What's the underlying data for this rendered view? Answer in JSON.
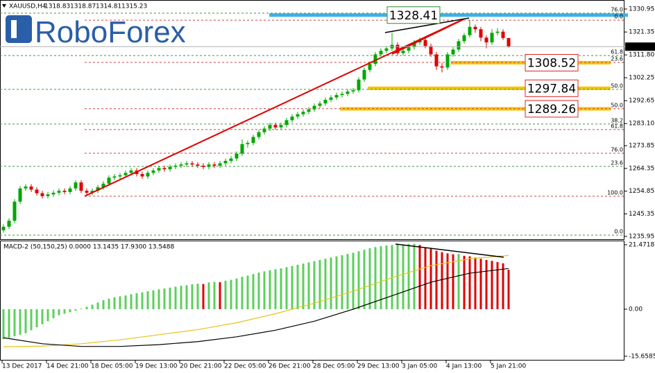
{
  "chart_data": [
    {
      "type": "candlestick",
      "title": "XAUUSD,H4",
      "logo": "RoboForex",
      "categories": [
        "13 Dec 2017",
        null,
        null,
        null,
        null,
        null,
        null,
        null,
        "14 Dec 21:00",
        null,
        null,
        null,
        null,
        null,
        null,
        null,
        "18 Dec 05:00",
        null,
        null,
        null,
        null,
        null,
        null,
        null,
        "19 Dec 13:00",
        null,
        null,
        null,
        null,
        null,
        null,
        null,
        "20 Dec 21:00",
        null,
        null,
        null,
        null,
        null,
        null,
        null,
        "22 Dec 05:00",
        null,
        null,
        null,
        null,
        null,
        null,
        null,
        "26 Dec 21:00",
        null,
        null,
        null,
        null,
        null,
        null,
        null,
        "28 Dec 05:00",
        null,
        null,
        null,
        null,
        null,
        null,
        null,
        "29 Dec 13:00",
        null,
        null,
        null,
        null,
        null,
        null,
        null,
        "3 Jan 05:00",
        null,
        null,
        null,
        null,
        null,
        null,
        null,
        "4 Jan 13:00",
        null,
        null,
        null,
        null,
        null,
        null,
        null,
        "5 Jan 21:00",
        null,
        null,
        null
      ],
      "ohlc": [
        [
          1238.5,
          1241.0,
          1237.5,
          1240.0
        ],
        [
          1240.0,
          1243.5,
          1239.0,
          1242.5
        ],
        [
          1242.5,
          1251.5,
          1241.5,
          1250.5
        ],
        [
          1250.5,
          1257.0,
          1249.5,
          1256.0
        ],
        [
          1256.0,
          1257.8,
          1255.0,
          1256.8
        ],
        [
          1256.8,
          1257.8,
          1254.5,
          1255.5
        ],
        [
          1255.5,
          1256.5,
          1253.0,
          1254.0
        ],
        [
          1254.0,
          1255.0,
          1251.8,
          1252.8
        ],
        [
          1252.8,
          1254.5,
          1251.8,
          1253.5
        ],
        [
          1253.5,
          1255.2,
          1252.5,
          1254.2
        ],
        [
          1254.2,
          1256.0,
          1253.2,
          1255.0
        ],
        [
          1255.0,
          1256.0,
          1253.5,
          1254.5
        ],
        [
          1254.5,
          1257.0,
          1253.5,
          1256.0
        ],
        [
          1256.0,
          1259.5,
          1255.0,
          1258.5
        ],
        [
          1258.5,
          1259.5,
          1254.0,
          1255.0
        ],
        [
          1255.0,
          1256.0,
          1253.2,
          1254.2
        ],
        [
          1254.2,
          1256.0,
          1253.2,
          1255.0
        ],
        [
          1255.0,
          1257.5,
          1254.0,
          1256.5
        ],
        [
          1256.5,
          1259.0,
          1255.5,
          1258.0
        ],
        [
          1258.0,
          1261.5,
          1257.0,
          1260.5
        ],
        [
          1260.5,
          1262.0,
          1259.5,
          1261.0
        ],
        [
          1261.0,
          1262.5,
          1260.0,
          1261.5
        ],
        [
          1261.5,
          1263.5,
          1260.5,
          1262.5
        ],
        [
          1262.5,
          1264.5,
          1261.5,
          1263.5
        ],
        [
          1263.5,
          1264.5,
          1261.0,
          1262.0
        ],
        [
          1262.0,
          1263.0,
          1260.0,
          1261.0
        ],
        [
          1261.0,
          1263.5,
          1260.0,
          1262.5
        ],
        [
          1262.5,
          1264.5,
          1261.5,
          1263.5
        ],
        [
          1263.5,
          1265.5,
          1262.5,
          1264.5
        ],
        [
          1264.5,
          1265.5,
          1263.0,
          1264.0
        ],
        [
          1264.0,
          1266.0,
          1263.0,
          1265.0
        ],
        [
          1265.0,
          1266.5,
          1264.0,
          1265.5
        ],
        [
          1265.5,
          1267.0,
          1264.5,
          1266.0
        ],
        [
          1266.0,
          1267.5,
          1265.0,
          1266.5
        ],
        [
          1266.5,
          1267.5,
          1265.0,
          1266.0
        ],
        [
          1266.0,
          1267.0,
          1264.5,
          1265.5
        ],
        [
          1265.5,
          1266.5,
          1264.0,
          1265.0
        ],
        [
          1265.0,
          1267.0,
          1264.0,
          1266.0
        ],
        [
          1266.0,
          1267.0,
          1264.5,
          1265.5
        ],
        [
          1265.5,
          1267.5,
          1264.5,
          1266.5
        ],
        [
          1266.5,
          1268.5,
          1265.5,
          1267.5
        ],
        [
          1267.5,
          1269.5,
          1266.5,
          1268.5
        ],
        [
          1268.5,
          1271.5,
          1267.5,
          1270.5
        ],
        [
          1270.5,
          1276.5,
          1269.5,
          1274.5
        ],
        [
          1274.5,
          1276.0,
          1273.0,
          1275.0
        ],
        [
          1275.0,
          1278.5,
          1274.0,
          1277.5
        ],
        [
          1277.5,
          1280.5,
          1276.5,
          1279.5
        ],
        [
          1279.5,
          1282.0,
          1278.5,
          1281.0
        ],
        [
          1281.0,
          1283.5,
          1280.0,
          1282.5
        ],
        [
          1282.5,
          1283.5,
          1280.5,
          1281.5
        ],
        [
          1281.5,
          1283.5,
          1280.5,
          1282.5
        ],
        [
          1282.5,
          1285.5,
          1281.5,
          1284.5
        ],
        [
          1284.5,
          1287.0,
          1283.5,
          1286.0
        ],
        [
          1286.0,
          1288.0,
          1285.0,
          1287.0
        ],
        [
          1287.0,
          1289.0,
          1286.0,
          1288.0
        ],
        [
          1288.0,
          1290.0,
          1287.0,
          1289.0
        ],
        [
          1289.0,
          1291.5,
          1288.0,
          1290.5
        ],
        [
          1290.5,
          1292.5,
          1289.5,
          1291.5
        ],
        [
          1291.5,
          1294.0,
          1290.5,
          1293.0
        ],
        [
          1293.0,
          1295.0,
          1292.0,
          1294.0
        ],
        [
          1294.0,
          1296.0,
          1293.0,
          1295.0
        ],
        [
          1295.0,
          1296.5,
          1294.0,
          1295.5
        ],
        [
          1295.5,
          1297.5,
          1294.5,
          1296.5
        ],
        [
          1296.5,
          1298.0,
          1295.5,
          1297.0
        ],
        [
          1297.0,
          1302.5,
          1296.0,
          1301.5
        ],
        [
          1301.5,
          1306.5,
          1300.5,
          1305.5
        ],
        [
          1305.5,
          1309.0,
          1304.5,
          1308.0
        ],
        [
          1308.0,
          1313.0,
          1307.0,
          1312.0
        ],
        [
          1312.0,
          1314.5,
          1311.0,
          1313.5
        ],
        [
          1313.5,
          1315.5,
          1312.5,
          1314.5
        ],
        [
          1314.5,
          1321.0,
          1313.5,
          1316.0
        ],
        [
          1316.0,
          1317.0,
          1311.5,
          1312.5
        ],
        [
          1312.5,
          1315.0,
          1311.5,
          1313.5
        ],
        [
          1313.5,
          1316.0,
          1312.5,
          1315.0
        ],
        [
          1315.0,
          1318.0,
          1314.0,
          1317.0
        ],
        [
          1317.0,
          1319.0,
          1316.0,
          1318.0
        ],
        [
          1318.0,
          1319.0,
          1314.5,
          1315.5
        ],
        [
          1315.5,
          1316.5,
          1311.0,
          1312.0
        ],
        [
          1312.0,
          1313.0,
          1305.5,
          1307.0
        ],
        [
          1307.0,
          1308.5,
          1304.5,
          1306.5
        ],
        [
          1306.5,
          1313.0,
          1305.5,
          1312.0
        ],
        [
          1312.0,
          1315.0,
          1311.0,
          1314.0
        ],
        [
          1314.0,
          1318.5,
          1313.0,
          1317.5
        ],
        [
          1317.5,
          1321.0,
          1316.5,
          1320.0
        ],
        [
          1320.0,
          1326.5,
          1319.0,
          1323.5
        ],
        [
          1323.5,
          1324.5,
          1321.0,
          1322.5
        ],
        [
          1322.5,
          1323.5,
          1317.5,
          1319.0
        ],
        [
          1319.0,
          1320.0,
          1314.5,
          1317.0
        ],
        [
          1317.0,
          1322.5,
          1316.0,
          1321.0
        ],
        [
          1321.0,
          1323.0,
          1320.0,
          1321.5
        ],
        [
          1321.5,
          1322.5,
          1318.0,
          1318.83
        ],
        [
          1318.83,
          1318.87,
          1314.81,
          1315.23
        ]
      ],
      "up_color": "#00a800",
      "down_color": "#e00000",
      "ylim": [
        1235.37,
        1333.27
      ],
      "yticks": [
        1330.95,
        1321.35,
        {
          "value": 1311.8,
          "label": "1311.80"
        },
        1302.25,
        1292.65,
        {
          "value": 1283.1,
          "label": "1283.10"
        },
        1273.85,
        1264.35,
        1254.85,
        1245.35,
        1235.95
      ],
      "fib_levels": [
        {
          "label": "76.0",
          "value": 1329.2,
          "color": "#3a9a3a"
        },
        {
          "label": "61.8",
          "value": 1311.5,
          "color": "#3a9a3a"
        },
        {
          "label": "50.0",
          "value": 1297.4,
          "color": "#3a9a3a"
        },
        {
          "label": "38.2",
          "value": 1282.9,
          "color": "#3a9a3a"
        },
        {
          "label": "23.6",
          "value": 1265.2,
          "color": "#3a9a3a"
        },
        {
          "label": "0.0",
          "value": 1236.5,
          "color": "#3a9a3a"
        },
        {
          "label": "0.0",
          "value": 1326.3,
          "color": "#d04040"
        },
        {
          "label": "23.6",
          "value": 1308.65,
          "color": "#d04040"
        },
        {
          "label": "50.0",
          "value": 1289.3,
          "color": "#d04040"
        },
        {
          "label": "61.8",
          "value": 1280.6,
          "color": "#d04040"
        },
        {
          "label": "76.0",
          "value": 1270.7,
          "color": "#d04040"
        },
        {
          "label": "100.0",
          "value": 1252.75,
          "color": "#d04040"
        }
      ],
      "levels": [
        {
          "value": 1328.41,
          "color": "#3fb0e4",
          "label_color": "#2a8a2a"
        },
        {
          "value": 1308.52,
          "color": "#f5c400",
          "label_color": "#e02020"
        },
        {
          "value": 1297.84,
          "color": "#f5c400",
          "label_color": "#e02020"
        },
        {
          "value": 1289.26,
          "color": "#f5c400",
          "label_color": "#e02020"
        }
      ],
      "price_line": true
    },
    {
      "type": "bar",
      "title": "MACD-2 (50,150,25) 0.0000 13.1435 17.9300 13.5488",
      "values": [
        -10,
        -9.5,
        -9,
        -8.5,
        -8,
        -7,
        -6,
        -5,
        -4,
        -3,
        -2,
        -1.5,
        -1,
        -0.5,
        0.2,
        0.8,
        1.5,
        2.2,
        3,
        3.5,
        4,
        4.3,
        4.6,
        5,
        5.3,
        5.6,
        6,
        6.3,
        6.6,
        6.9,
        7.2,
        7.5,
        7.8,
        8,
        8.3,
        8.5,
        8.4,
        8.9,
        9.1,
        9.0,
        9.5,
        9.8,
        10.2,
        10.8,
        11.2,
        11.7,
        12.2,
        12.6,
        13,
        13.3,
        13.6,
        14,
        14.4,
        14.8,
        15.2,
        15.6,
        16,
        16.4,
        16.8,
        17.2,
        17.6,
        18,
        18.4,
        18.8,
        19.3,
        19.8,
        20.3,
        20.7,
        21,
        21.2,
        21.4,
        21.5,
        21.6,
        21.7,
        21.8,
        21.4,
        20.6,
        20.1,
        19.5,
        19,
        18.6,
        18.3,
        18.4,
        17.8,
        17.6,
        17.2,
        16.8,
        16.4,
        16.1,
        15.7,
        15.3,
        13.1435
      ],
      "up_color": "#5ccf5c",
      "down_color": "#e00000",
      "ylim": [
        -17.09,
        22.4
      ],
      "yticks": [
        21.4718,
        {
          "value": 0,
          "label": "0.00"
        },
        -15.6585
      ],
      "series": [
        {
          "color": "#e8c21a",
          "x": [
            0,
            7,
            14,
            21,
            28,
            35,
            42,
            49,
            56,
            63,
            70,
            77,
            84,
            91
          ],
          "values": [
            -12.5,
            -12.3,
            -11.5,
            -10.2,
            -8.5,
            -6.8,
            -4.5,
            -1.5,
            2,
            6,
            10.5,
            14.5,
            16.8,
            17.93
          ]
        },
        {
          "color": "#000000",
          "x": [
            0,
            7,
            14,
            21,
            28,
            35,
            42,
            49,
            56,
            63,
            70,
            77,
            84,
            91
          ],
          "values": [
            -9.5,
            -11.5,
            -12.4,
            -12.4,
            -11.8,
            -10.8,
            -9.2,
            -7,
            -4,
            0,
            4.5,
            9,
            12,
            13.5488
          ]
        }
      ]
    }
  ]
}
